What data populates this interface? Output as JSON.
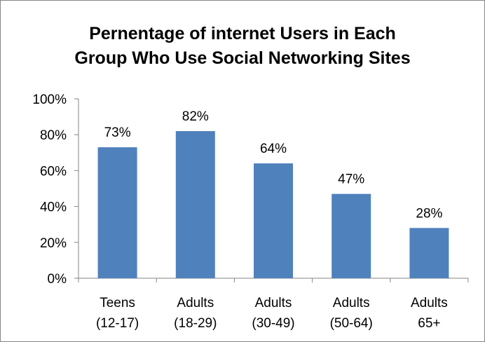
{
  "chart_data": {
    "type": "bar",
    "title_lines": [
      "Pernentage of internet Users in Each",
      "Group Who Use Social Networking Sites"
    ],
    "categories": [
      [
        "Teens",
        "(12-17)"
      ],
      [
        "Adults",
        "(18-29)"
      ],
      [
        "Adults",
        "(30-49)"
      ],
      [
        "Adults",
        "(50-64)"
      ],
      [
        "Adults",
        "65+"
      ]
    ],
    "values": [
      73,
      82,
      64,
      47,
      28
    ],
    "data_labels": [
      "73%",
      "82%",
      "64%",
      "47%",
      "28%"
    ],
    "y_ticks": [
      "0%",
      "20%",
      "40%",
      "60%",
      "80%",
      "100%"
    ],
    "ylim": [
      0,
      100
    ],
    "grid": false,
    "legend": "none",
    "bar_color": "#4F81BD",
    "axis_color": "#868686"
  }
}
